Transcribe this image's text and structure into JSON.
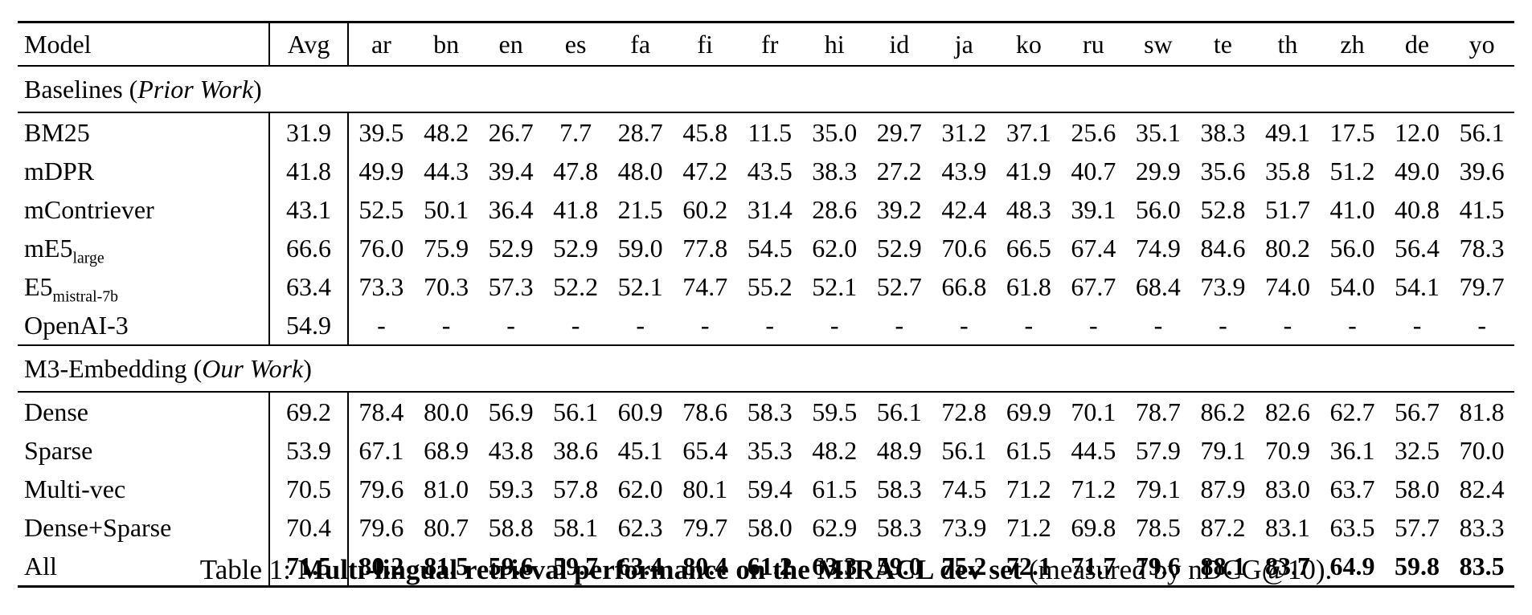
{
  "page": {
    "background": "#ffffff",
    "text_color": "#000000"
  },
  "table": {
    "columns": [
      "Model",
      "Avg",
      "ar",
      "bn",
      "en",
      "es",
      "fa",
      "fi",
      "fr",
      "hi",
      "id",
      "ja",
      "ko",
      "ru",
      "sw",
      "te",
      "th",
      "zh",
      "de",
      "yo"
    ],
    "sections": [
      {
        "title_prefix": "Baselines (",
        "title_italic": "Prior Work",
        "title_suffix": ")",
        "rows": [
          {
            "model": "BM25",
            "sub": "",
            "bold": false,
            "avg": "31.9",
            "values": [
              "39.5",
              "48.2",
              "26.7",
              "7.7",
              "28.7",
              "45.8",
              "11.5",
              "35.0",
              "29.7",
              "31.2",
              "37.1",
              "25.6",
              "35.1",
              "38.3",
              "49.1",
              "17.5",
              "12.0",
              "56.1"
            ]
          },
          {
            "model": "mDPR",
            "sub": "",
            "bold": false,
            "avg": "41.8",
            "values": [
              "49.9",
              "44.3",
              "39.4",
              "47.8",
              "48.0",
              "47.2",
              "43.5",
              "38.3",
              "27.2",
              "43.9",
              "41.9",
              "40.7",
              "29.9",
              "35.6",
              "35.8",
              "51.2",
              "49.0",
              "39.6"
            ]
          },
          {
            "model": "mContriever",
            "sub": "",
            "bold": false,
            "avg": "43.1",
            "values": [
              "52.5",
              "50.1",
              "36.4",
              "41.8",
              "21.5",
              "60.2",
              "31.4",
              "28.6",
              "39.2",
              "42.4",
              "48.3",
              "39.1",
              "56.0",
              "52.8",
              "51.7",
              "41.0",
              "40.8",
              "41.5"
            ]
          },
          {
            "model": "mE5",
            "sub": "large",
            "bold": false,
            "avg": "66.6",
            "values": [
              "76.0",
              "75.9",
              "52.9",
              "52.9",
              "59.0",
              "77.8",
              "54.5",
              "62.0",
              "52.9",
              "70.6",
              "66.5",
              "67.4",
              "74.9",
              "84.6",
              "80.2",
              "56.0",
              "56.4",
              "78.3"
            ]
          },
          {
            "model": "E5",
            "sub": "mistral-7b",
            "bold": false,
            "avg": "63.4",
            "values": [
              "73.3",
              "70.3",
              "57.3",
              "52.2",
              "52.1",
              "74.7",
              "55.2",
              "52.1",
              "52.7",
              "66.8",
              "61.8",
              "67.7",
              "68.4",
              "73.9",
              "74.0",
              "54.0",
              "54.1",
              "79.7"
            ]
          },
          {
            "model": "OpenAI-3",
            "sub": "",
            "bold": false,
            "avg": "54.9",
            "values": [
              "-",
              "-",
              "-",
              "-",
              "-",
              "-",
              "-",
              "-",
              "-",
              "-",
              "-",
              "-",
              "-",
              "-",
              "-",
              "-",
              "-",
              "-"
            ]
          }
        ]
      },
      {
        "title_prefix": "M3-Embedding (",
        "title_italic": "Our Work",
        "title_suffix": ")",
        "rows": [
          {
            "model": "Dense",
            "sub": "",
            "bold": false,
            "avg": "69.2",
            "values": [
              "78.4",
              "80.0",
              "56.9",
              "56.1",
              "60.9",
              "78.6",
              "58.3",
              "59.5",
              "56.1",
              "72.8",
              "69.9",
              "70.1",
              "78.7",
              "86.2",
              "82.6",
              "62.7",
              "56.7",
              "81.8"
            ]
          },
          {
            "model": "Sparse",
            "sub": "",
            "bold": false,
            "avg": "53.9",
            "values": [
              "67.1",
              "68.9",
              "43.8",
              "38.6",
              "45.1",
              "65.4",
              "35.3",
              "48.2",
              "48.9",
              "56.1",
              "61.5",
              "44.5",
              "57.9",
              "79.1",
              "70.9",
              "36.1",
              "32.5",
              "70.0"
            ]
          },
          {
            "model": "Multi-vec",
            "sub": "",
            "bold": false,
            "avg": "70.5",
            "values": [
              "79.6",
              "81.0",
              "59.3",
              "57.8",
              "62.0",
              "80.1",
              "59.4",
              "61.5",
              "58.3",
              "74.5",
              "71.2",
              "71.2",
              "79.1",
              "87.9",
              "83.0",
              "63.7",
              "58.0",
              "82.4"
            ]
          },
          {
            "model": "Dense+Sparse",
            "sub": "",
            "bold": false,
            "avg": "70.4",
            "values": [
              "79.6",
              "80.7",
              "58.8",
              "58.1",
              "62.3",
              "79.7",
              "58.0",
              "62.9",
              "58.3",
              "73.9",
              "71.2",
              "69.8",
              "78.5",
              "87.2",
              "83.1",
              "63.5",
              "57.7",
              "83.3"
            ]
          },
          {
            "model": "All",
            "sub": "",
            "bold": true,
            "avg": "71.5",
            "values": [
              "80.2",
              "81.5",
              "59.6",
              "59.7",
              "63.4",
              "80.4",
              "61.2",
              "63.3",
              "59.0",
              "75.2",
              "72.1",
              "71.7",
              "79.6",
              "88.1",
              "83.7",
              "64.9",
              "59.8",
              "83.5"
            ]
          }
        ]
      }
    ]
  },
  "caption": {
    "prefix": "Table 1: ",
    "bold": "Multi-lingual retrieval performance on the MIRACL dev set",
    "suffix": " (measured by nDCG@10)."
  }
}
